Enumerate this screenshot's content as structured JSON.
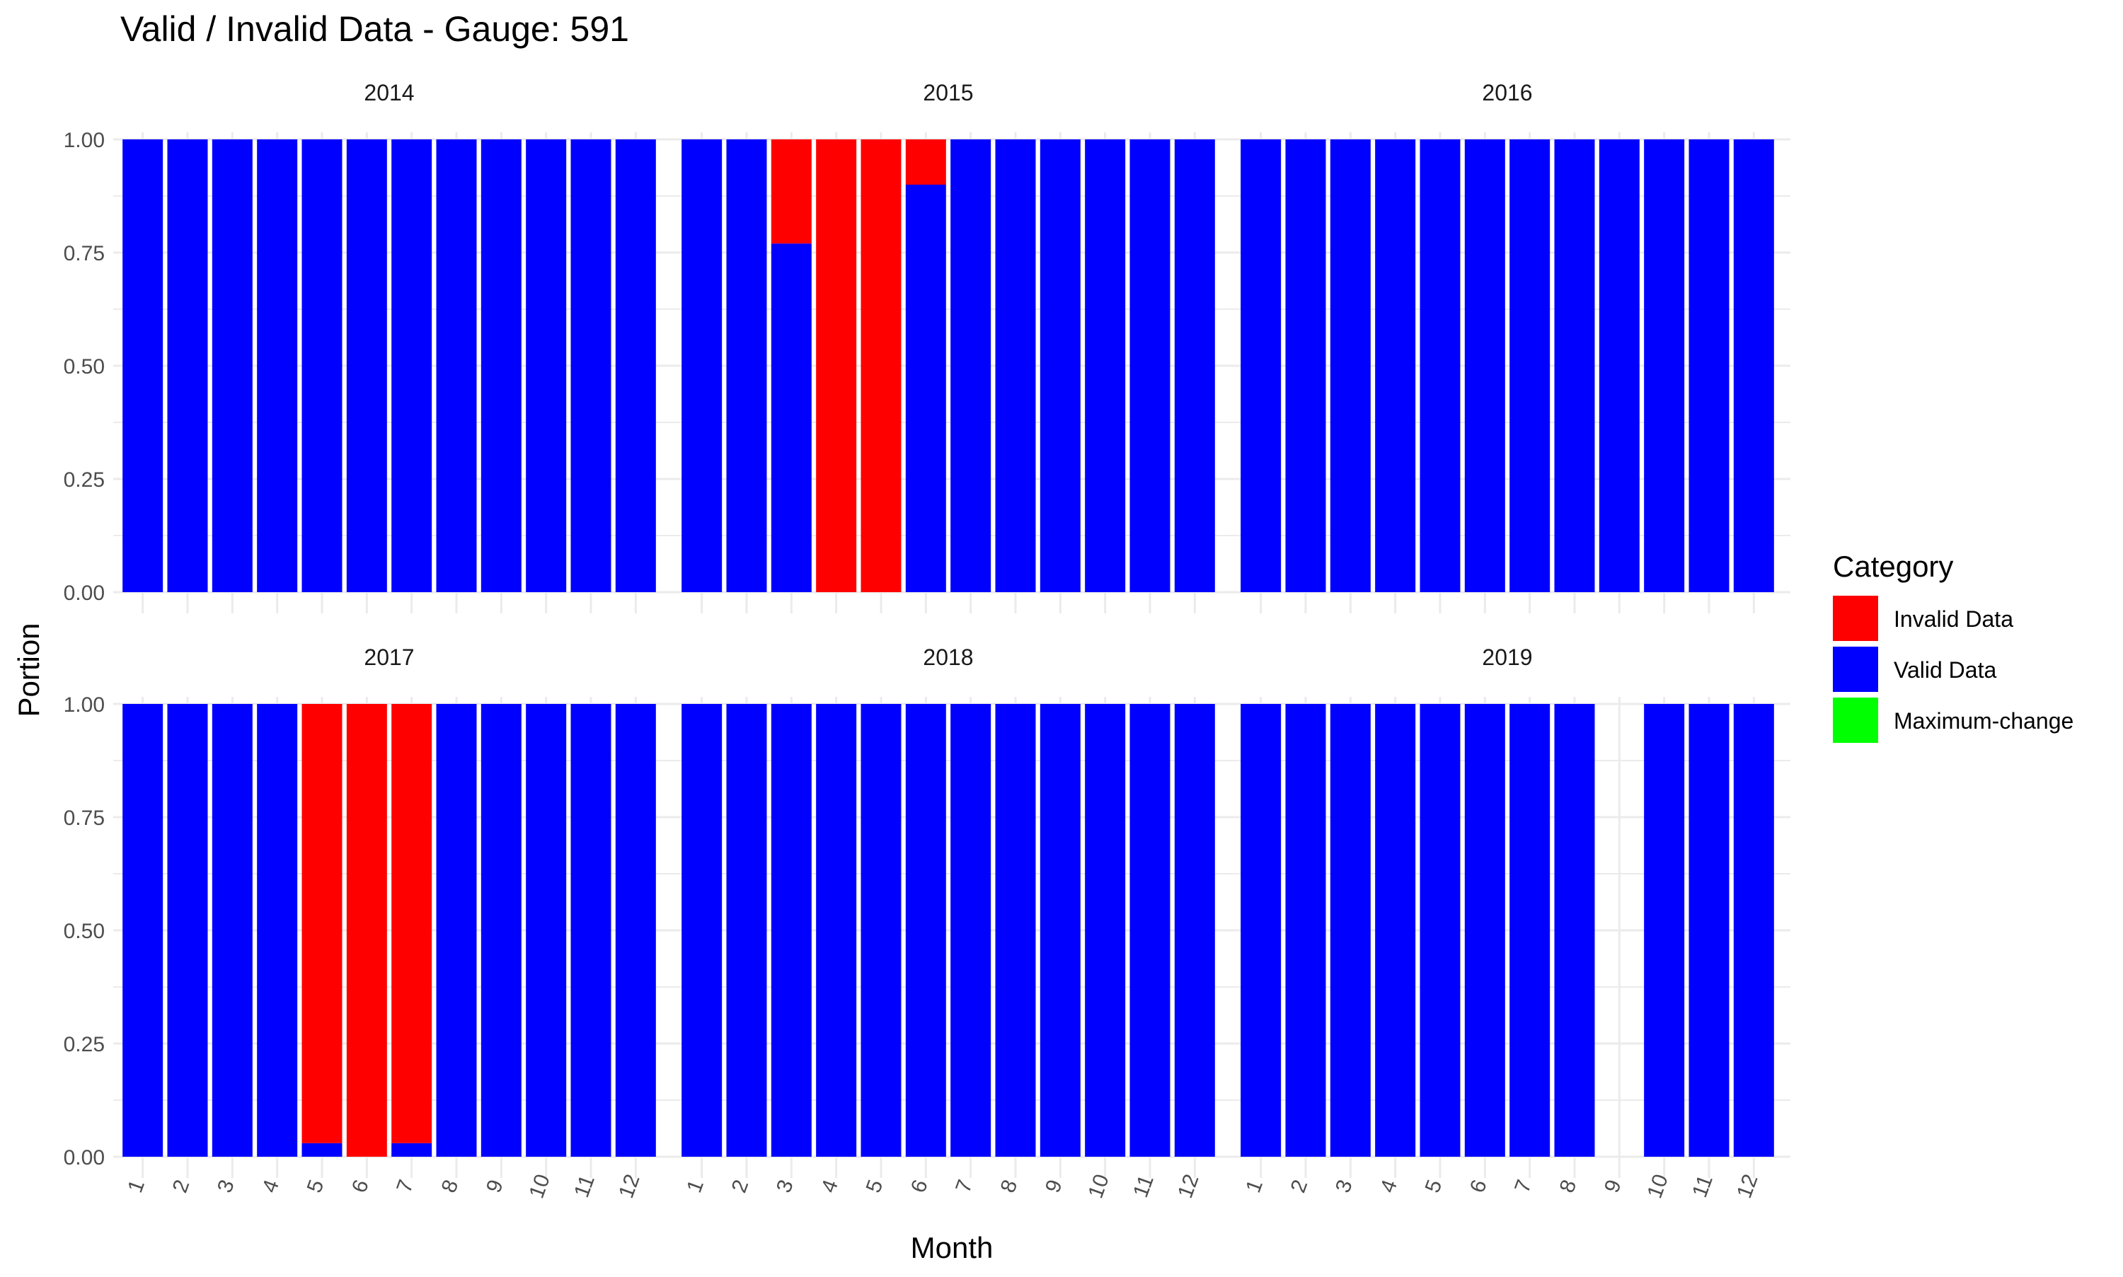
{
  "chart_data": {
    "type": "bar",
    "stacked": true,
    "title": "Valid / Invalid Data - Gauge: 591",
    "xlabel": "Month",
    "ylabel": "Portion",
    "ylim": [
      0,
      1
    ],
    "yticks": [
      "0.00",
      "0.25",
      "0.50",
      "0.75",
      "1.00"
    ],
    "categories": [
      "1",
      "2",
      "3",
      "4",
      "5",
      "6",
      "7",
      "8",
      "9",
      "10",
      "11",
      "12"
    ],
    "grid": true,
    "legend": {
      "title": "Category",
      "position": "right",
      "entries": [
        {
          "name": "Invalid Data",
          "color": "#FF0000"
        },
        {
          "name": "Valid Data",
          "color": "#0000FF"
        },
        {
          "name": "Maximum-change",
          "color": "#00FF00"
        }
      ]
    },
    "facets": [
      {
        "label": "2014",
        "series": [
          {
            "name": "Valid Data",
            "values": [
              1,
              1,
              1,
              1,
              1,
              1,
              1,
              1,
              1,
              1,
              1,
              1
            ]
          },
          {
            "name": "Invalid Data",
            "values": [
              0,
              0,
              0,
              0,
              0,
              0,
              0,
              0,
              0,
              0,
              0,
              0
            ]
          }
        ]
      },
      {
        "label": "2015",
        "series": [
          {
            "name": "Valid Data",
            "values": [
              1,
              1,
              0.77,
              0,
              0,
              0.9,
              1,
              1,
              1,
              1,
              1,
              1
            ]
          },
          {
            "name": "Invalid Data",
            "values": [
              0,
              0,
              0.23,
              1,
              1,
              0.1,
              0,
              0,
              0,
              0,
              0,
              0
            ]
          }
        ]
      },
      {
        "label": "2016",
        "series": [
          {
            "name": "Valid Data",
            "values": [
              1,
              1,
              1,
              1,
              1,
              1,
              1,
              1,
              1,
              1,
              1,
              1
            ]
          },
          {
            "name": "Invalid Data",
            "values": [
              0,
              0,
              0,
              0,
              0,
              0,
              0,
              0,
              0,
              0,
              0,
              0
            ]
          }
        ]
      },
      {
        "label": "2017",
        "series": [
          {
            "name": "Valid Data",
            "values": [
              1,
              1,
              1,
              1,
              0.03,
              0,
              0.03,
              1,
              1,
              1,
              1,
              1
            ]
          },
          {
            "name": "Invalid Data",
            "values": [
              0,
              0,
              0,
              0,
              0.97,
              1,
              0.97,
              0,
              0,
              0,
              0,
              0
            ]
          }
        ]
      },
      {
        "label": "2018",
        "series": [
          {
            "name": "Valid Data",
            "values": [
              1,
              1,
              1,
              1,
              1,
              1,
              1,
              1,
              1,
              1,
              1,
              1
            ]
          },
          {
            "name": "Invalid Data",
            "values": [
              0,
              0,
              0,
              0,
              0,
              0,
              0,
              0,
              0,
              0,
              0,
              0
            ]
          }
        ]
      },
      {
        "label": "2019",
        "series": [
          {
            "name": "Valid Data",
            "values": [
              1,
              1,
              1,
              1,
              1,
              1,
              1,
              1,
              null,
              1,
              1,
              1
            ]
          },
          {
            "name": "Invalid Data",
            "values": [
              0,
              0,
              0,
              0,
              0,
              0,
              0,
              0,
              null,
              0,
              0,
              0
            ]
          }
        ]
      }
    ]
  }
}
